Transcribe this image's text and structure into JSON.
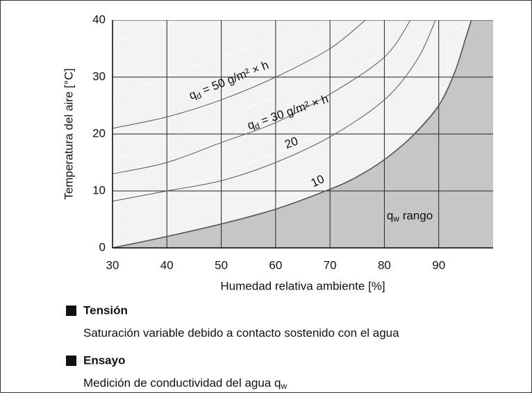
{
  "chart_data": {
    "type": "line",
    "xlabel": "Humedad relativa ambiente [%]",
    "ylabel": "Temperatura del aire [°C]",
    "xlim": [
      30,
      100
    ],
    "ylim": [
      0,
      40
    ],
    "xticks": [
      30,
      40,
      50,
      60,
      70,
      80,
      90
    ],
    "yticks": [
      0,
      10,
      20,
      30,
      40
    ],
    "grid": true,
    "series": [
      {
        "name": "10",
        "color": "#555555",
        "x": [
          30,
          40,
          50,
          60,
          70,
          75,
          80,
          85,
          90,
          93,
          95,
          96
        ],
        "values": [
          0,
          2,
          4.2,
          6.8,
          10.3,
          12.5,
          15.5,
          19.5,
          25,
          31,
          37,
          40
        ]
      },
      {
        "name": "20",
        "color": "#555555",
        "x": [
          30,
          40,
          50,
          60,
          70,
          80,
          86,
          89.4
        ],
        "values": [
          8.2,
          10,
          11.8,
          15,
          19.5,
          26,
          33,
          40
        ]
      },
      {
        "name": "30",
        "color": "#555555",
        "x": [
          30,
          40,
          50,
          60,
          70,
          80,
          84.8
        ],
        "values": [
          13,
          15,
          18.5,
          22,
          27,
          33.5,
          40
        ]
      },
      {
        "name": "50",
        "color": "#555555",
        "x": [
          30,
          40,
          50,
          60,
          70,
          76.5
        ],
        "values": [
          21,
          23,
          26,
          30,
          35,
          40
        ]
      }
    ],
    "annotations": [
      {
        "text": "q",
        "sub": "d",
        "rest": " = 50 g/m² × h"
      },
      {
        "text": "q",
        "sub": "d",
        "rest": " = 30 g/m² × h"
      },
      {
        "text": "20"
      },
      {
        "text": "10"
      },
      {
        "text": "q",
        "sub": "w",
        "rest": " rango"
      }
    ],
    "legend": [
      {
        "title": "Tensión",
        "text": "Saturación variable debido a contacto sostenido con el agua"
      },
      {
        "title": "Ensayo",
        "text": "Medición de conductividad del agua q",
        "sub": "w"
      }
    ]
  }
}
